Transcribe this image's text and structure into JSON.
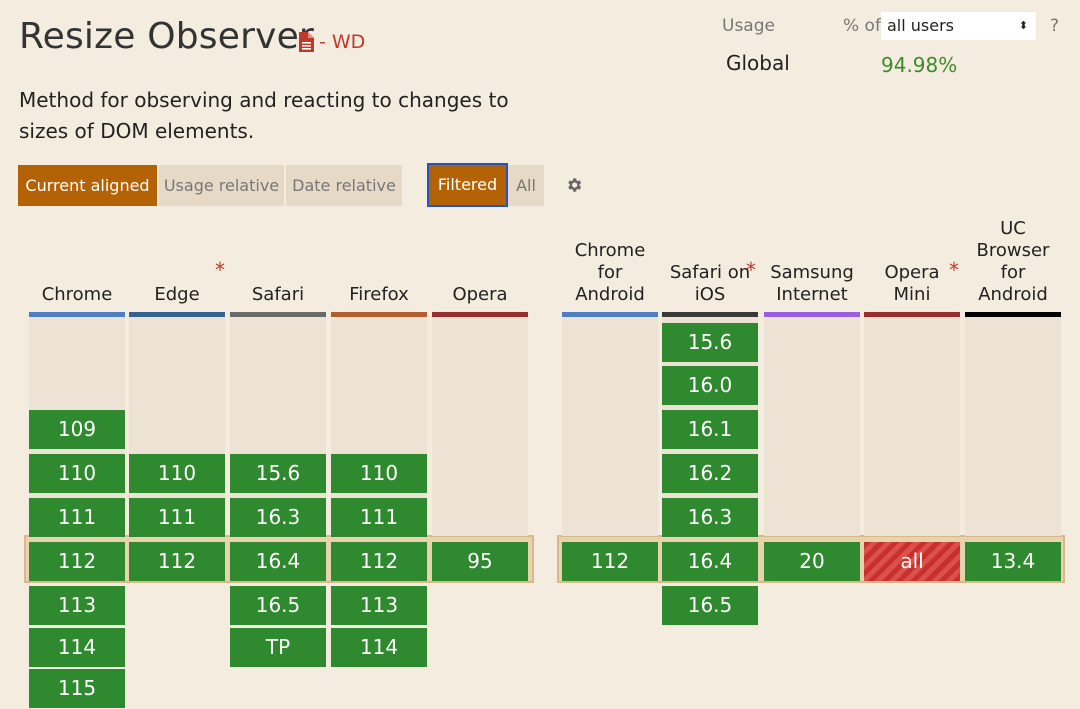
{
  "title": "Resize Observer",
  "status": "- WD",
  "description": "Method for observing and reacting to changes to sizes of DOM elements.",
  "view_tabs": [
    "Current aligned",
    "Usage relative",
    "Date relative"
  ],
  "filter_tabs": [
    "Filtered",
    "All"
  ],
  "usage": {
    "label": "Usage",
    "pct_of": "% of",
    "selected": "all users",
    "select_arrow": "⬍",
    "help": "?",
    "global_label": "Global",
    "global_value": "94.98%"
  },
  "colors": {
    "supported": "#2f8a2f",
    "partial": "#c8302e",
    "accent": "#b36205"
  },
  "browsers": [
    {
      "name": "Chrome",
      "bar": "#4e7ec4",
      "asterisk": false
    },
    {
      "name": "Edge",
      "bar": "#35628f",
      "asterisk": true
    },
    {
      "name": "Safari",
      "bar": "#6a6a6a",
      "asterisk": false
    },
    {
      "name": "Firefox",
      "bar": "#b35d2c",
      "asterisk": false
    },
    {
      "name": "Opera",
      "bar": "#9a2d2d",
      "asterisk": false
    },
    {
      "name": "Chrome for Android",
      "bar": "#4e7ec4",
      "asterisk": false
    },
    {
      "name": "Safari on iOS",
      "bar": "#3a3a3a",
      "asterisk": true
    },
    {
      "name": "Samsung Internet",
      "bar": "#9b5de5",
      "asterisk": false
    },
    {
      "name": "Opera Mini",
      "bar": "#9a2d2d",
      "asterisk": true
    },
    {
      "name": "UC Browser for Android",
      "bar": "#000000",
      "asterisk": false
    }
  ],
  "versions": [
    [
      "109",
      "110",
      "111",
      "112",
      "113",
      "114",
      "115"
    ],
    [
      "110",
      "111",
      "112"
    ],
    [
      "15.6",
      "16.3",
      "16.4",
      "16.5",
      "TP"
    ],
    [
      "110",
      "111",
      "112",
      "113",
      "114"
    ],
    [
      "95"
    ],
    [
      "112"
    ],
    [
      "15.6",
      "16.0",
      "16.1",
      "16.2",
      "16.3",
      "16.4",
      "16.5"
    ],
    [
      "20"
    ],
    [
      "all"
    ],
    [
      "13.4"
    ]
  ]
}
